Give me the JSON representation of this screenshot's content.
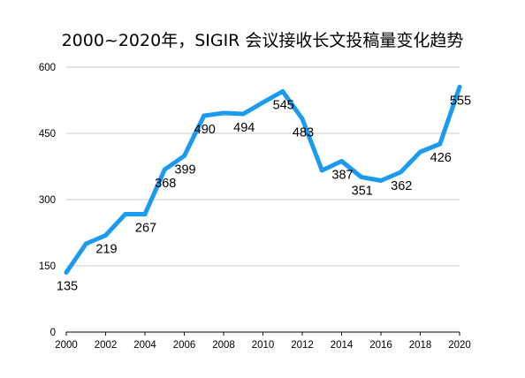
{
  "chart_data": {
    "type": "line",
    "title": "2000~2020年，SIGIR 会议接收长文投稿量变化趋势",
    "xlabel": "",
    "ylabel": "",
    "x": [
      2000,
      2001,
      2002,
      2003,
      2004,
      2005,
      2006,
      2007,
      2008,
      2009,
      2010,
      2011,
      2012,
      2013,
      2014,
      2015,
      2016,
      2017,
      2018,
      2019,
      2020
    ],
    "series": [
      {
        "values": [
          135,
          200,
          219,
          267,
          267,
          368,
          399,
          490,
          496,
          494,
          520,
          545,
          483,
          366,
          387,
          351,
          343,
          362,
          408,
          426,
          555
        ],
        "color": "#1a9bf0"
      }
    ],
    "labeled_points": [
      {
        "x": 2000,
        "text": "135"
      },
      {
        "x": 2002,
        "text": "219"
      },
      {
        "x": 2004,
        "text": "267"
      },
      {
        "x": 2005,
        "text": "368"
      },
      {
        "x": 2006,
        "text": "399"
      },
      {
        "x": 2007,
        "text": "490"
      },
      {
        "x": 2009,
        "text": "494"
      },
      {
        "x": 2011,
        "text": "545"
      },
      {
        "x": 2012,
        "text": "483"
      },
      {
        "x": 2014,
        "text": "387"
      },
      {
        "x": 2015,
        "text": "351"
      },
      {
        "x": 2017,
        "text": "362"
      },
      {
        "x": 2019,
        "text": "426"
      },
      {
        "x": 2020,
        "text": "555"
      }
    ],
    "x_ticks": [
      "2000",
      "2002",
      "2004",
      "2006",
      "2008",
      "2010",
      "2012",
      "2014",
      "2016",
      "2018",
      "2020"
    ],
    "y_ticks": [
      "0",
      "150",
      "300",
      "450",
      "600"
    ],
    "xlim": [
      2000,
      2020
    ],
    "ylim": [
      0,
      600
    ],
    "grid": true,
    "legend": "none"
  }
}
